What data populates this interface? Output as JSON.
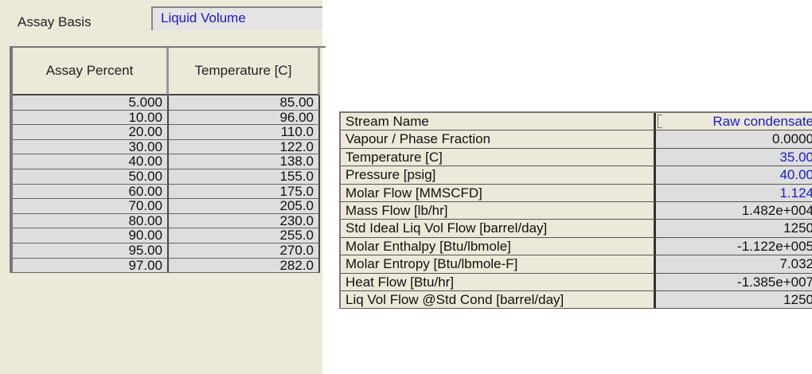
{
  "assay": {
    "basis_label": "Assay Basis",
    "basis_value": "Liquid Volume",
    "columns": [
      "Assay Percent",
      "Temperature [C]"
    ],
    "rows": [
      [
        "5.000",
        "85.00"
      ],
      [
        "10.00",
        "96.00"
      ],
      [
        "20.00",
        "110.0"
      ],
      [
        "30.00",
        "122.0"
      ],
      [
        "40.00",
        "138.0"
      ],
      [
        "50.00",
        "155.0"
      ],
      [
        "60.00",
        "175.0"
      ],
      [
        "70.00",
        "205.0"
      ],
      [
        "80.00",
        "230.0"
      ],
      [
        "90.00",
        "255.0"
      ],
      [
        "95.00",
        "270.0"
      ],
      [
        "97.00",
        "282.0"
      ]
    ]
  },
  "stream": {
    "rows": [
      {
        "label": "Stream Name",
        "value": "Raw condensate",
        "blue": true
      },
      {
        "label": "Vapour / Phase Fraction",
        "value": "0.0000",
        "blue": false
      },
      {
        "label": "Temperature [C]",
        "value": "35.00",
        "blue": true
      },
      {
        "label": "Pressure [psig]",
        "value": "40.00",
        "blue": true
      },
      {
        "label": "Molar Flow [MMSCFD]",
        "value": "1.124",
        "blue": true
      },
      {
        "label": "Mass Flow [lb/hr]",
        "value": "1.482e+004",
        "blue": false
      },
      {
        "label": "Std Ideal Liq Vol Flow [barrel/day]",
        "value": "1250",
        "blue": false
      },
      {
        "label": "Molar Enthalpy [Btu/lbmole]",
        "value": "-1.122e+005",
        "blue": false
      },
      {
        "label": "Molar Entropy [Btu/lbmole-F]",
        "value": "7.032",
        "blue": false
      },
      {
        "label": "Heat Flow [Btu/hr]",
        "value": "-1.385e+007",
        "blue": false
      },
      {
        "label": "Liq Vol Flow @Std Cond [barrel/day]",
        "value": "1250",
        "blue": false
      }
    ]
  },
  "colors": {
    "input_blue": "#1a1ad0",
    "panel": "#ece9d8",
    "cell": "#dedede"
  }
}
